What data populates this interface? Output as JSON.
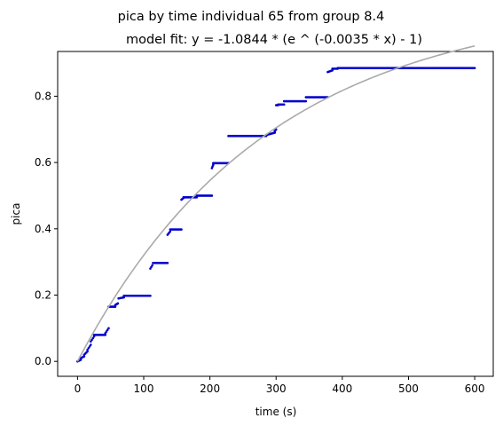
{
  "chart_data": {
    "type": "scatter",
    "suptitle": "pica by time individual 65 from group 8.4",
    "title": "model fit: y = -1.0844 * (e ^ (-0.0035 * x) - 1)",
    "xlabel": "time (s)",
    "ylabel": "pica",
    "xlim": [
      -30,
      628
    ],
    "ylim": [
      -0.045,
      0.935
    ],
    "xticks": [
      0,
      100,
      200,
      300,
      400,
      500,
      600
    ],
    "yticks": [
      0.0,
      0.2,
      0.4,
      0.6,
      0.8
    ],
    "xtick_labels": [
      "0",
      "100",
      "200",
      "300",
      "400",
      "500",
      "600"
    ],
    "ytick_labels": [
      "0.0",
      "0.2",
      "0.4",
      "0.6",
      "0.8"
    ],
    "grid": false,
    "model": {
      "a": 1.0844,
      "k": 0.0035,
      "x_range": [
        0,
        600
      ],
      "color": "#aaaaaa"
    },
    "point_color": "#0000cc",
    "steps": [
      [
        0,
        5,
        0.0,
        0.005
      ],
      [
        5,
        10,
        0.01,
        0.015
      ],
      [
        10,
        15,
        0.02,
        0.03
      ],
      [
        15,
        20,
        0.035,
        0.05
      ],
      [
        20,
        25,
        0.06,
        0.075
      ],
      [
        25,
        42,
        0.08,
        0.08
      ],
      [
        42,
        47,
        0.085,
        0.1
      ],
      [
        47,
        57,
        0.165,
        0.165
      ],
      [
        57,
        61,
        0.17,
        0.175
      ],
      [
        62,
        70,
        0.19,
        0.193
      ],
      [
        70,
        110,
        0.198,
        0.198
      ],
      [
        110,
        113,
        0.28,
        0.29
      ],
      [
        114,
        136,
        0.297,
        0.297
      ],
      [
        136,
        140,
        0.382,
        0.392
      ],
      [
        140,
        157,
        0.398,
        0.398
      ],
      [
        157,
        160,
        0.488,
        0.493
      ],
      [
        160,
        180,
        0.495,
        0.495
      ],
      [
        180,
        203,
        0.5,
        0.5
      ],
      [
        203,
        205,
        0.583,
        0.593
      ],
      [
        205,
        228,
        0.598,
        0.598
      ],
      [
        228,
        285,
        0.68,
        0.68
      ],
      [
        285,
        298,
        0.683,
        0.69
      ],
      [
        298,
        300,
        0.695,
        0.7
      ],
      [
        300,
        303,
        0.773,
        0.773
      ],
      [
        303,
        312,
        0.775,
        0.775
      ],
      [
        312,
        345,
        0.785,
        0.785
      ],
      [
        345,
        378,
        0.797,
        0.797
      ],
      [
        378,
        385,
        0.873,
        0.878
      ],
      [
        385,
        393,
        0.883,
        0.883
      ],
      [
        393,
        600,
        0.885,
        0.885
      ]
    ]
  }
}
